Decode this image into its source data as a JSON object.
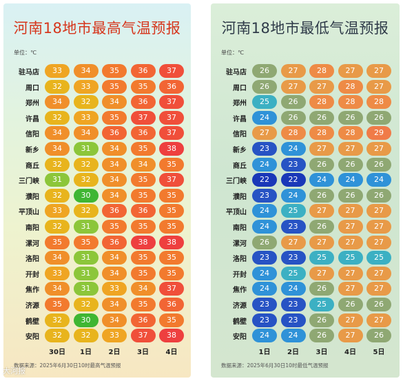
{
  "chart_data": [
    {
      "type": "table",
      "title": "河南18地市最高气温预报",
      "unit_label": "单位：℃",
      "days": [
        "30日",
        "1日",
        "2日",
        "3日",
        "4日"
      ],
      "cities": [
        "驻马店",
        "周口",
        "郑州",
        "许昌",
        "信阳",
        "新乡",
        "商丘",
        "三门峡",
        "濮阳",
        "平顶山",
        "南阳",
        "漯河",
        "洛阳",
        "开封",
        "焦作",
        "济源",
        "鹤壁",
        "安阳"
      ],
      "values": [
        [
          33,
          34,
          35,
          36,
          37
        ],
        [
          32,
          33,
          35,
          35,
          36
        ],
        [
          34,
          32,
          34,
          36,
          37
        ],
        [
          32,
          33,
          35,
          37,
          37
        ],
        [
          34,
          34,
          36,
          36,
          37
        ],
        [
          34,
          31,
          34,
          35,
          38
        ],
        [
          32,
          32,
          34,
          34,
          35
        ],
        [
          31,
          32,
          34,
          35,
          37
        ],
        [
          32,
          30,
          34,
          35,
          35
        ],
        [
          33,
          32,
          36,
          36,
          35
        ],
        [
          32,
          31,
          35,
          35,
          35
        ],
        [
          35,
          35,
          36,
          38,
          38
        ],
        [
          34,
          31,
          34,
          35,
          35
        ],
        [
          33,
          31,
          34,
          35,
          35
        ],
        [
          34,
          31,
          33,
          34,
          37
        ],
        [
          35,
          32,
          34,
          35,
          36
        ],
        [
          32,
          30,
          34,
          36,
          35
        ],
        [
          32,
          32,
          33,
          37,
          38
        ]
      ],
      "source": "数据来源：2025年6月30日10时最高气温预报"
    },
    {
      "type": "table",
      "title": "河南18地市最低气温预报",
      "unit_label": "单位：℃",
      "days": [
        "1日",
        "2日",
        "3日",
        "4日",
        "5日"
      ],
      "cities": [
        "驻马店",
        "周口",
        "郑州",
        "许昌",
        "信阳",
        "新乡",
        "商丘",
        "三门峡",
        "濮阳",
        "平顶山",
        "南阳",
        "漯河",
        "洛阳",
        "开封",
        "焦作",
        "济源",
        "鹤壁",
        "安阳"
      ],
      "values": [
        [
          26,
          27,
          28,
          27,
          27
        ],
        [
          26,
          27,
          27,
          28,
          27
        ],
        [
          25,
          26,
          28,
          28,
          28
        ],
        [
          24,
          26,
          26,
          26,
          26
        ],
        [
          27,
          28,
          28,
          28,
          29
        ],
        [
          23,
          24,
          27,
          27,
          27
        ],
        [
          24,
          23,
          26,
          26,
          26
        ],
        [
          22,
          22,
          24,
          24,
          24
        ],
        [
          23,
          24,
          26,
          26,
          26
        ],
        [
          24,
          25,
          27,
          27,
          27
        ],
        [
          24,
          23,
          26,
          27,
          27
        ],
        [
          26,
          27,
          27,
          27,
          27
        ],
        [
          23,
          23,
          25,
          25,
          25
        ],
        [
          24,
          25,
          27,
          27,
          27
        ],
        [
          24,
          24,
          26,
          27,
          27
        ],
        [
          23,
          23,
          25,
          26,
          26
        ],
        [
          23,
          23,
          26,
          27,
          27
        ],
        [
          24,
          24,
          26,
          27,
          26
        ]
      ],
      "source": "数据来源：2025年6月30日10时最低气温预报"
    }
  ],
  "colors": {
    "high": {
      "30": "#3fb633",
      "31": "#8cc63a",
      "32": "#e8b41d",
      "33": "#efa523",
      "34": "#f08f2a",
      "35": "#f27a2e",
      "36": "#f26534",
      "37": "#f04f3a",
      "38": "#ee3f3f"
    },
    "low": {
      "22": "#1a38b8",
      "23": "#2753c4",
      "24": "#2f92d8",
      "25": "#3cb0c3",
      "26": "#8fa873",
      "27": "#e89a48",
      "28": "#ee8b46",
      "29": "#f07b48"
    }
  },
  "watermark": "大河报"
}
